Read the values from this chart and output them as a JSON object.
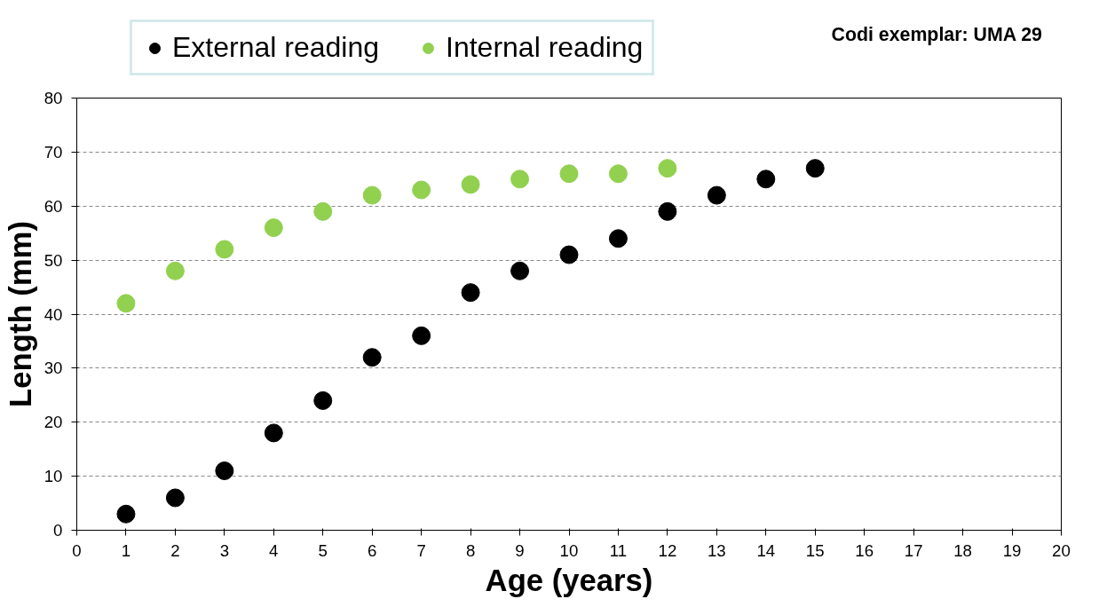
{
  "chart_data": {
    "type": "scatter",
    "xlabel": "Age (years)",
    "ylabel": "Length (mm)",
    "annotations": [
      "Codi exemplar: UMA 29"
    ],
    "xlim": [
      0,
      20
    ],
    "xticks": [
      0,
      1,
      2,
      3,
      4,
      5,
      6,
      7,
      8,
      9,
      10,
      11,
      12,
      13,
      14,
      15,
      16,
      17,
      18,
      19,
      20
    ],
    "ylim": [
      0,
      80
    ],
    "yticks": [
      0,
      10,
      20,
      30,
      40,
      50,
      60,
      70,
      80
    ],
    "grid": "y",
    "legend": "top",
    "marker": "circle",
    "series": [
      {
        "name": "External reading",
        "color": "#000000",
        "x": [
          1,
          2,
          3,
          4,
          5,
          6,
          7,
          8,
          9,
          10,
          11,
          12,
          13,
          14,
          15
        ],
        "values": [
          3,
          6,
          11,
          18,
          24,
          32,
          36,
          44,
          48,
          51,
          54,
          59,
          62,
          65,
          67
        ]
      },
      {
        "name": "Internal reading",
        "color": "#92d050",
        "x": [
          1,
          2,
          3,
          4,
          5,
          6,
          7,
          8,
          9,
          10,
          11,
          12
        ],
        "values": [
          42,
          48,
          52,
          56,
          59,
          62,
          63,
          64,
          65,
          66,
          66,
          67
        ]
      }
    ]
  }
}
